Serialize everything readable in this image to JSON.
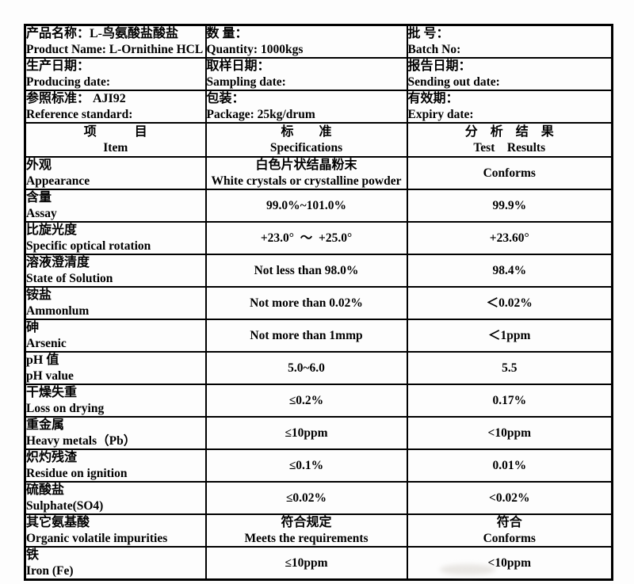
{
  "colors": {
    "border": "#000000",
    "text": "#000000",
    "page_background": "#ffffff"
  },
  "info": {
    "rows": [
      {
        "cells": [
          {
            "zh": "产品名称：L-鸟氨酸盐酸盐",
            "en": "Product Name: L-Ornithine HCL"
          },
          {
            "zh": "数 量：",
            "en": "Quantity: 1000kgs"
          },
          {
            "zh": "批 号：",
            "en": "Batch No:"
          }
        ]
      },
      {
        "cells": [
          {
            "zh": "生产日期：",
            "en": "Producing date:"
          },
          {
            "zh": "取样日期：",
            "en": "Sampling date:"
          },
          {
            "zh": "报告日期：",
            "en": "Sending out date:"
          }
        ]
      },
      {
        "cells": [
          {
            "zh": "参照标准： AJI92",
            "en": "Reference standard:"
          },
          {
            "zh": "包装：",
            "en": "Package: 25kg/drum"
          },
          {
            "zh": "有效期：",
            "en": "Expiry date:"
          }
        ]
      }
    ]
  },
  "main_table": {
    "header": {
      "item_zh": "项　　　目",
      "item_en": "Item",
      "spec_zh": "标　　准",
      "spec_en": "Specifications",
      "result_zh": "分　析　结　果",
      "result_en": "Test　Results"
    },
    "rows": [
      {
        "item_zh": "外观",
        "item_en": "Appearance",
        "spec": [
          "白色片状结晶粉末",
          "White crystals or crystalline powder"
        ],
        "result": [
          "Conforms"
        ]
      },
      {
        "item_zh": "含量",
        "item_en": "Assay",
        "spec": [
          "99.0%~101.0%"
        ],
        "result": [
          "99.9%"
        ]
      },
      {
        "item_zh": "比旋光度",
        "item_en": "Specific optical rotation",
        "spec": [
          "+23.0°  ～  +25.0°"
        ],
        "result": [
          "+23.60°"
        ]
      },
      {
        "item_zh": "溶液澄清度",
        "item_en": "State of Solution",
        "spec": [
          "Not less than 98.0%"
        ],
        "result": [
          "98.4%"
        ],
        "spec_valign": "bottom",
        "result_valign": "top"
      },
      {
        "item_zh": "铵盐",
        "item_en": "Ammonlum",
        "spec": [
          "Not more than 0.02%"
        ],
        "result": [
          "＜0.02%"
        ]
      },
      {
        "item_zh": "砷",
        "item_en": "Arsenic",
        "spec": [
          "Not more than 1mmp"
        ],
        "result": [
          "＜1ppm"
        ]
      },
      {
        "item_zh": "pH 值",
        "item_en": "pH value",
        "spec": [
          "5.0~6.0"
        ],
        "result": [
          "5.5"
        ]
      },
      {
        "item_zh": "干燥失重",
        "item_en": "Loss on drying",
        "spec": [
          "≤0.2%"
        ],
        "result": [
          "0.17%"
        ]
      },
      {
        "item_zh": "重金属",
        "item_en": "Heavy metals（Pb）",
        "spec": [
          "≤10ppm"
        ],
        "result": [
          "<10ppm"
        ]
      },
      {
        "item_zh": "炽灼残渣",
        "item_en": "Residue on ignition",
        "spec": [
          "≤0.1%"
        ],
        "result": [
          "0.01%"
        ]
      },
      {
        "item_zh": "硫酸盐",
        "item_en": "Sulphate(SO4)",
        "spec": [
          "≤0.02%"
        ],
        "result": [
          "<0.02%"
        ]
      },
      {
        "item_zh": "其它氨基酸",
        "item_en": "Organic volatile impurities",
        "spec": [
          "符合规定",
          "Meets the requirements"
        ],
        "result": [
          "符合",
          "Conforms"
        ]
      },
      {
        "item_zh": "铁",
        "item_en": "Iron (Fe)",
        "spec": [
          "≤10ppm"
        ],
        "result": [
          "<10ppm"
        ]
      }
    ]
  }
}
